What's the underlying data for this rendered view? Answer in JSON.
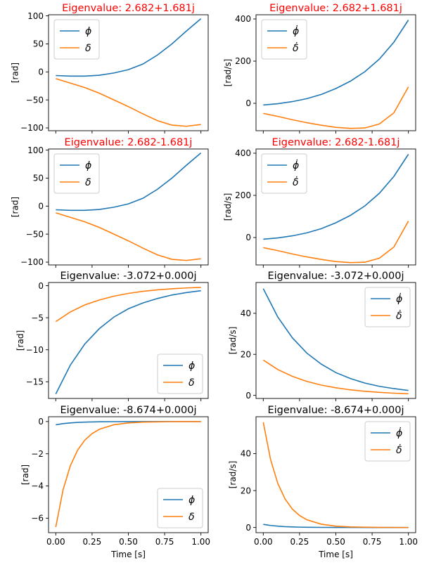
{
  "figure": {
    "xlabel": "Time [s]"
  },
  "chart_data": [
    {
      "type": "line",
      "title": "Eigenvalue: 2.682+1.681j",
      "title_color": "#ff0000",
      "ylabel": "[rad]",
      "xlim": [
        -0.05,
        1.05
      ],
      "ylim": [
        -105,
        102
      ],
      "xticks": [
        0.0,
        0.25,
        0.5,
        0.75,
        1.0
      ],
      "xtick_labels": [
        "0.00",
        "0.25",
        "0.50",
        "0.75",
        "1.00"
      ],
      "yticks": [
        -100,
        -50,
        0,
        50,
        100
      ],
      "ytick_labels": [
        "−100",
        "−50",
        "0",
        "50",
        "100"
      ],
      "legend": "upper-left",
      "grid": false,
      "x": [
        0,
        0.1,
        0.2,
        0.3,
        0.4,
        0.5,
        0.6,
        0.7,
        0.8,
        0.9,
        1.0
      ],
      "series": [
        {
          "name": "ϕ",
          "color": "#1f77b4",
          "values": [
            -6.5,
            -7.5,
            -7.5,
            -6,
            -2,
            4,
            14,
            30,
            50,
            73,
            95
          ]
        },
        {
          "name": "δ",
          "color": "#ff7f0e",
          "values": [
            -12,
            -20,
            -28,
            -38,
            -50,
            -62,
            -75,
            -87,
            -95,
            -97,
            -94
          ]
        }
      ]
    },
    {
      "type": "line",
      "title": "Eigenvalue: 2.682+1.681j",
      "title_color": "#ff0000",
      "ylabel": "[rad/s]",
      "xlim": [
        -0.05,
        1.05
      ],
      "ylim": [
        -130,
        420
      ],
      "xticks": [
        0.0,
        0.25,
        0.5,
        0.75,
        1.0
      ],
      "xtick_labels": [
        "0.00",
        "0.25",
        "0.50",
        "0.75",
        "1.00"
      ],
      "yticks": [
        0,
        200,
        400
      ],
      "ytick_labels": [
        "0",
        "200",
        "400"
      ],
      "legend": "upper-left",
      "grid": false,
      "x": [
        0,
        0.1,
        0.2,
        0.3,
        0.4,
        0.5,
        0.6,
        0.7,
        0.8,
        0.9,
        1.0
      ],
      "series": [
        {
          "name": "ϕ̇",
          "color": "#1f77b4",
          "values": [
            -8,
            -2,
            8,
            22,
            42,
            70,
            105,
            150,
            210,
            290,
            395
          ]
        },
        {
          "name": "δ̇",
          "color": "#ff7f0e",
          "values": [
            -48,
            -62,
            -78,
            -92,
            -104,
            -114,
            -119,
            -117,
            -98,
            -45,
            78
          ]
        }
      ]
    },
    {
      "type": "line",
      "title": "Eigenvalue: 2.682-1.681j",
      "title_color": "#ff0000",
      "ylabel": "[rad]",
      "xlim": [
        -0.05,
        1.05
      ],
      "ylim": [
        -105,
        102
      ],
      "xticks": [
        0.0,
        0.25,
        0.5,
        0.75,
        1.0
      ],
      "xtick_labels": [
        "0.00",
        "0.25",
        "0.50",
        "0.75",
        "1.00"
      ],
      "yticks": [
        -100,
        -50,
        0,
        50,
        100
      ],
      "ytick_labels": [
        "−100",
        "−50",
        "0",
        "50",
        "100"
      ],
      "legend": "upper-left",
      "grid": false,
      "x": [
        0,
        0.1,
        0.2,
        0.3,
        0.4,
        0.5,
        0.6,
        0.7,
        0.8,
        0.9,
        1.0
      ],
      "series": [
        {
          "name": "ϕ",
          "color": "#1f77b4",
          "values": [
            -6.5,
            -7.5,
            -7.5,
            -6,
            -2,
            4,
            14,
            30,
            50,
            73,
            95
          ]
        },
        {
          "name": "δ",
          "color": "#ff7f0e",
          "values": [
            -12,
            -20,
            -28,
            -38,
            -50,
            -62,
            -75,
            -87,
            -95,
            -97,
            -94
          ]
        }
      ]
    },
    {
      "type": "line",
      "title": "Eigenvalue: 2.682-1.681j",
      "title_color": "#ff0000",
      "ylabel": "[rad/s]",
      "xlim": [
        -0.05,
        1.05
      ],
      "ylim": [
        -130,
        420
      ],
      "xticks": [
        0.0,
        0.25,
        0.5,
        0.75,
        1.0
      ],
      "xtick_labels": [
        "0.00",
        "0.25",
        "0.50",
        "0.75",
        "1.00"
      ],
      "yticks": [
        0,
        200,
        400
      ],
      "ytick_labels": [
        "0",
        "200",
        "400"
      ],
      "legend": "upper-left",
      "grid": false,
      "x": [
        0,
        0.1,
        0.2,
        0.3,
        0.4,
        0.5,
        0.6,
        0.7,
        0.8,
        0.9,
        1.0
      ],
      "series": [
        {
          "name": "ϕ̇",
          "color": "#1f77b4",
          "values": [
            -8,
            -2,
            8,
            22,
            42,
            70,
            105,
            150,
            210,
            290,
            395
          ]
        },
        {
          "name": "δ̇",
          "color": "#ff7f0e",
          "values": [
            -48,
            -62,
            -78,
            -92,
            -104,
            -114,
            -119,
            -117,
            -98,
            -45,
            78
          ]
        }
      ]
    },
    {
      "type": "line",
      "title": "Eigenvalue: -3.072+0.000j",
      "title_color": "#000000",
      "ylabel": "[rad]",
      "xlim": [
        -0.05,
        1.05
      ],
      "ylim": [
        -17.6,
        0.5
      ],
      "xticks": [
        0.0,
        0.25,
        0.5,
        0.75,
        1.0
      ],
      "xtick_labels": [
        "0.00",
        "0.25",
        "0.50",
        "0.75",
        "1.00"
      ],
      "yticks": [
        -15,
        -10,
        -5,
        0
      ],
      "ytick_labels": [
        "−15",
        "−10",
        "−5",
        "0"
      ],
      "legend": "lower-right",
      "grid": false,
      "x": [
        0,
        0.1,
        0.2,
        0.3,
        0.4,
        0.5,
        0.6,
        0.7,
        0.8,
        0.9,
        1.0
      ],
      "series": [
        {
          "name": "ϕ",
          "color": "#1f77b4",
          "values": [
            -16.9,
            -12.4,
            -9.1,
            -6.7,
            -4.9,
            -3.6,
            -2.7,
            -2.0,
            -1.45,
            -1.07,
            -0.78
          ]
        },
        {
          "name": "δ",
          "color": "#ff7f0e",
          "values": [
            -5.6,
            -4.1,
            -3.0,
            -2.23,
            -1.64,
            -1.2,
            -0.88,
            -0.65,
            -0.48,
            -0.35,
            -0.26
          ]
        }
      ]
    },
    {
      "type": "line",
      "title": "Eigenvalue: -3.072+0.000j",
      "title_color": "#000000",
      "ylabel": "[rad/s]",
      "xlim": [
        -0.05,
        1.05
      ],
      "ylim": [
        -1.5,
        55
      ],
      "xticks": [
        0.0,
        0.25,
        0.5,
        0.75,
        1.0
      ],
      "xtick_labels": [
        "0.00",
        "0.25",
        "0.50",
        "0.75",
        "1.00"
      ],
      "yticks": [
        0,
        20,
        40
      ],
      "ytick_labels": [
        "0",
        "20",
        "40"
      ],
      "legend": "upper-right",
      "grid": false,
      "x": [
        0,
        0.1,
        0.2,
        0.3,
        0.4,
        0.5,
        0.6,
        0.7,
        0.8,
        0.9,
        1.0
      ],
      "series": [
        {
          "name": "ϕ̇",
          "color": "#1f77b4",
          "values": [
            52,
            38.2,
            28.1,
            20.6,
            15.2,
            11.1,
            8.2,
            6.0,
            4.4,
            3.3,
            2.4
          ]
        },
        {
          "name": "δ̇",
          "color": "#ff7f0e",
          "values": [
            17.2,
            12.6,
            9.3,
            6.8,
            5.0,
            3.7,
            2.7,
            2.0,
            1.46,
            1.07,
            0.8
          ]
        }
      ]
    },
    {
      "type": "line",
      "title": "Eigenvalue: -8.674+0.000j",
      "title_color": "#000000",
      "ylabel": "[rad]",
      "xlim": [
        -0.05,
        1.05
      ],
      "ylim": [
        -6.9,
        0.3
      ],
      "xticks": [
        0.0,
        0.25,
        0.5,
        0.75,
        1.0
      ],
      "xtick_labels": [
        "0.00",
        "0.25",
        "0.50",
        "0.75",
        "1.00"
      ],
      "yticks": [
        -6,
        -4,
        -2,
        0
      ],
      "ytick_labels": [
        "−6",
        "−4",
        "−2",
        "0"
      ],
      "legend": "lower-right",
      "grid": false,
      "x": [
        0,
        0.05,
        0.1,
        0.15,
        0.2,
        0.25,
        0.3,
        0.4,
        0.5,
        0.6,
        0.8,
        1.0
      ],
      "series": [
        {
          "name": "ϕ",
          "color": "#1f77b4",
          "values": [
            -0.2,
            -0.13,
            -0.084,
            -0.054,
            -0.035,
            -0.023,
            -0.015,
            -0.006,
            -0.0026,
            -0.0011,
            -0.0002,
            0
          ]
        },
        {
          "name": "δ",
          "color": "#ff7f0e",
          "values": [
            -6.55,
            -4.24,
            -2.75,
            -1.78,
            -1.15,
            -0.75,
            -0.48,
            -0.2,
            -0.086,
            -0.036,
            -0.006,
            -0.001
          ]
        }
      ]
    },
    {
      "type": "line",
      "title": "Eigenvalue: -8.674+0.000j",
      "title_color": "#000000",
      "ylabel": "[rad/s]",
      "xlim": [
        -0.05,
        1.05
      ],
      "ylim": [
        -2.8,
        60
      ],
      "xticks": [
        0.0,
        0.25,
        0.5,
        0.75,
        1.0
      ],
      "xtick_labels": [
        "0.00",
        "0.25",
        "0.50",
        "0.75",
        "1.00"
      ],
      "yticks": [
        0,
        20,
        40
      ],
      "ytick_labels": [
        "0",
        "20",
        "40"
      ],
      "legend": "upper-right",
      "grid": false,
      "x": [
        0,
        0.05,
        0.1,
        0.15,
        0.2,
        0.25,
        0.3,
        0.4,
        0.5,
        0.6,
        0.8,
        1.0
      ],
      "series": [
        {
          "name": "ϕ̇",
          "color": "#1f77b4",
          "values": [
            1.7,
            1.1,
            0.73,
            0.47,
            0.31,
            0.2,
            0.13,
            0.05,
            0.02,
            0.01,
            0,
            0
          ]
        },
        {
          "name": "δ̇",
          "color": "#ff7f0e",
          "values": [
            57,
            36.9,
            23.9,
            15.5,
            10.0,
            6.5,
            4.2,
            1.8,
            0.75,
            0.31,
            0.05,
            0.01
          ]
        }
      ]
    }
  ]
}
